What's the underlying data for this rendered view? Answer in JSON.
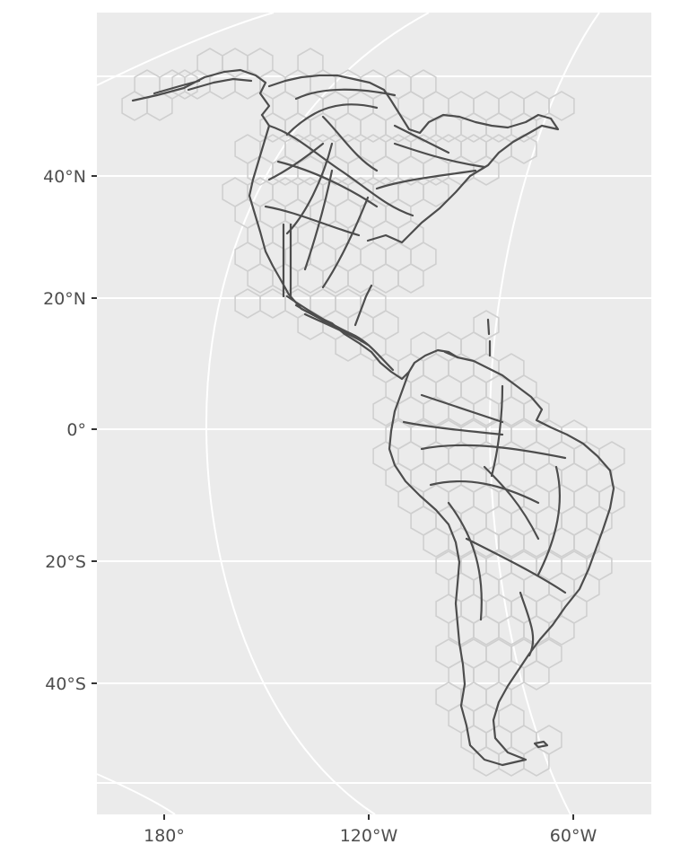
{
  "map": {
    "type": "hexbin-map",
    "region": "Americas",
    "background": "#ebebeb",
    "outline_color": "#4d4d4d",
    "hex_stroke_color": "#cfcfcf",
    "grid_color": "#ffffff",
    "y_axis": {
      "ticks": [
        {
          "label": "40°N",
          "value": 40
        },
        {
          "label": "20°N",
          "value": 20
        },
        {
          "label": "0°",
          "value": 0
        },
        {
          "label": "20°S",
          "value": -20
        },
        {
          "label": "40°S",
          "value": -40
        }
      ]
    },
    "x_axis": {
      "ticks": [
        {
          "label": "180°",
          "value": -180
        },
        {
          "label": "120°W",
          "value": -120
        },
        {
          "label": "60°W",
          "value": -60
        }
      ]
    }
  }
}
